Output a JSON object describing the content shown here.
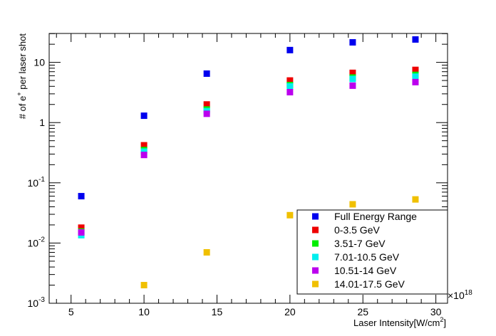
{
  "chart_data": {
    "type": "scatter",
    "xlabel": "Laser Intensity[W/cm",
    "xlabel_superscript": "2",
    "xlabel_suffix": "]",
    "ylabel_prefix": "# of e",
    "ylabel_superscript": "+",
    "ylabel_suffix": " per laser shot",
    "xlim": [
      3.5,
      30.8
    ],
    "ylim_log10": [
      -3,
      1.48
    ],
    "yscale": "log",
    "x_multiplier_label": "×10",
    "x_multiplier_exponent": "18",
    "x_ticks": [
      5,
      10,
      15,
      20,
      25,
      30
    ],
    "x_tick_labels": [
      "5",
      "10",
      "15",
      "20",
      "25",
      "30"
    ],
    "y_ticks": [
      {
        "value": 0.001,
        "base": "10",
        "exp": "-3"
      },
      {
        "value": 0.01,
        "base": "10",
        "exp": "-2"
      },
      {
        "value": 0.1,
        "base": "10",
        "exp": "-1"
      },
      {
        "value": 1,
        "base": "1",
        "exp": ""
      },
      {
        "value": 10,
        "base": "10",
        "exp": ""
      }
    ],
    "legend_position": "bottom-right",
    "series": [
      {
        "name": "Full Energy Range",
        "color": "#0000ee",
        "points": [
          [
            5.7,
            0.06
          ],
          [
            10.0,
            1.3
          ],
          [
            14.3,
            6.5
          ],
          [
            20.0,
            16.0
          ],
          [
            24.3,
            21.5
          ],
          [
            28.6,
            24.0
          ]
        ]
      },
      {
        "name": "0-3.5 GeV",
        "color": "#ee0000",
        "points": [
          [
            5.7,
            0.018
          ],
          [
            10.0,
            0.42
          ],
          [
            14.3,
            2.0
          ],
          [
            20.0,
            5.0
          ],
          [
            24.3,
            6.7
          ],
          [
            28.6,
            7.5
          ]
        ]
      },
      {
        "name": "3.51-7 GeV",
        "color": "#00ee00",
        "points": [
          [
            5.7,
            0.0155
          ],
          [
            10.0,
            0.35
          ],
          [
            14.3,
            1.65
          ],
          [
            20.0,
            4.2
          ],
          [
            24.3,
            5.6
          ],
          [
            28.6,
            6.2
          ]
        ]
      },
      {
        "name": "7.01-10.5 GeV",
        "color": "#00eeee",
        "points": [
          [
            5.7,
            0.0135
          ],
          [
            10.0,
            0.33
          ],
          [
            14.3,
            1.55
          ],
          [
            20.0,
            4.0
          ],
          [
            24.3,
            5.3
          ],
          [
            28.6,
            5.8
          ]
        ]
      },
      {
        "name": "10.51-14 GeV",
        "color": "#bb00ee",
        "points": [
          [
            5.7,
            0.015
          ],
          [
            10.0,
            0.29
          ],
          [
            14.3,
            1.4
          ],
          [
            20.0,
            3.2
          ],
          [
            24.3,
            4.1
          ],
          [
            28.6,
            4.7
          ]
        ]
      },
      {
        "name": "14.01-17.5 GeV",
        "color": "#f0c000",
        "points": [
          [
            10.0,
            0.002
          ],
          [
            14.3,
            0.007
          ],
          [
            20.0,
            0.029
          ],
          [
            24.3,
            0.044
          ],
          [
            28.6,
            0.053
          ]
        ]
      }
    ]
  }
}
